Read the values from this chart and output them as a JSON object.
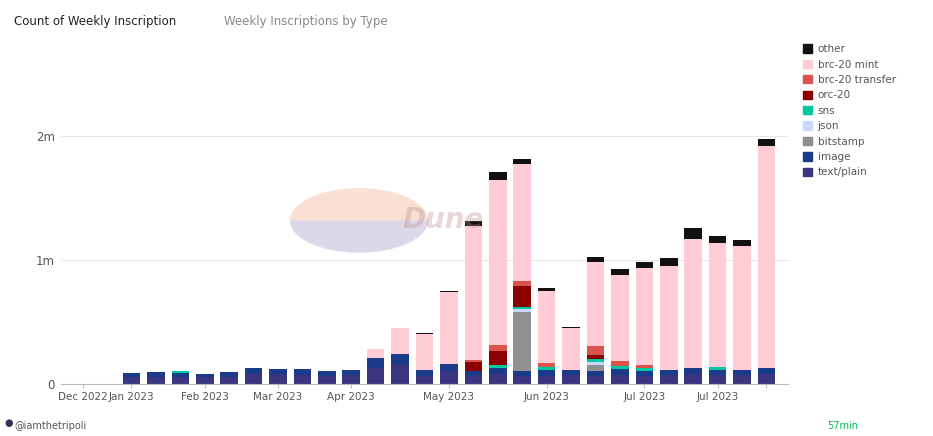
{
  "title_left": "Count of Weekly Inscription",
  "title_right": "Weekly Inscriptions by Type",
  "ylabel_ticks": [
    0,
    1000000,
    2000000
  ],
  "ylabel_labels": [
    "0",
    "1m",
    "2m"
  ],
  "ylim": [
    0,
    2750000
  ],
  "background_color": "#ffffff",
  "legend_items": [
    "other",
    "brc-20 mint",
    "brc-20 transfer",
    "orc-20",
    "sns",
    "json",
    "bitstamp",
    "image",
    "text/plain"
  ],
  "legend_colors": [
    "#111111",
    "#ffccd5",
    "#d9534f",
    "#8b0000",
    "#00c8a0",
    "#c8d8ff",
    "#909090",
    "#1a3a8a",
    "#3b3580"
  ],
  "footer_left": "@iamthetripoli",
  "footer_right": "57min",
  "series": {
    "text/plain": [
      0,
      0,
      50000,
      55000,
      55000,
      50000,
      55000,
      80000,
      75000,
      70000,
      65000,
      70000,
      130000,
      150000,
      65000,
      100000,
      65000,
      75000,
      60000,
      65000,
      70000,
      65000,
      70000,
      65000,
      70000,
      75000,
      70000,
      70000,
      75000
    ],
    "image": [
      0,
      0,
      35000,
      38000,
      35000,
      30000,
      38000,
      50000,
      45000,
      45000,
      40000,
      38000,
      75000,
      90000,
      45000,
      60000,
      40000,
      50000,
      40000,
      45000,
      40000,
      40000,
      45000,
      40000,
      42000,
      48000,
      42000,
      42000,
      48000
    ],
    "bitstamp": [
      0,
      0,
      0,
      0,
      0,
      0,
      0,
      0,
      0,
      0,
      0,
      0,
      0,
      0,
      0,
      0,
      0,
      0,
      480000,
      0,
      0,
      45000,
      0,
      0,
      0,
      0,
      0,
      0,
      0
    ],
    "json": [
      0,
      0,
      0,
      0,
      0,
      0,
      0,
      0,
      0,
      0,
      0,
      0,
      0,
      0,
      0,
      0,
      0,
      0,
      25000,
      0,
      0,
      25000,
      0,
      0,
      0,
      0,
      0,
      0,
      0
    ],
    "sns": [
      0,
      0,
      0,
      0,
      12000,
      0,
      0,
      0,
      0,
      0,
      0,
      0,
      0,
      0,
      0,
      0,
      0,
      30000,
      15000,
      25000,
      0,
      25000,
      25000,
      25000,
      0,
      0,
      25000,
      0,
      0
    ],
    "orc-20": [
      0,
      0,
      0,
      0,
      0,
      0,
      0,
      0,
      0,
      0,
      0,
      0,
      0,
      0,
      0,
      0,
      70000,
      110000,
      170000,
      0,
      0,
      35000,
      0,
      0,
      0,
      0,
      0,
      0,
      0
    ],
    "brc-20 transfer": [
      0,
      0,
      0,
      0,
      0,
      0,
      0,
      0,
      0,
      0,
      0,
      0,
      0,
      0,
      0,
      0,
      20000,
      50000,
      40000,
      35000,
      0,
      70000,
      40000,
      25000,
      0,
      0,
      0,
      0,
      0
    ],
    "brc-20 mint": [
      0,
      0,
      0,
      0,
      0,
      0,
      0,
      0,
      0,
      0,
      0,
      0,
      75000,
      210000,
      290000,
      580000,
      1080000,
      1330000,
      950000,
      580000,
      340000,
      680000,
      700000,
      780000,
      840000,
      1050000,
      1000000,
      1000000,
      1800000
    ],
    "other": [
      0,
      0,
      0,
      0,
      0,
      0,
      0,
      0,
      0,
      0,
      0,
      0,
      4000,
      4000,
      8000,
      12000,
      40000,
      65000,
      40000,
      25000,
      12000,
      40000,
      50000,
      45000,
      65000,
      85000,
      58000,
      50000,
      58000
    ]
  },
  "n_bars": 29,
  "tick_positions": [
    0,
    2,
    5,
    8,
    11,
    15,
    19,
    23,
    26,
    28
  ],
  "tick_labels": [
    "Dec 2022",
    "Jan 2023",
    "Feb 2023",
    "Mar 2023",
    "Apr 2023",
    "May 2023",
    "Jun 2023",
    "Jul 2023",
    "Jul 2023",
    ""
  ]
}
